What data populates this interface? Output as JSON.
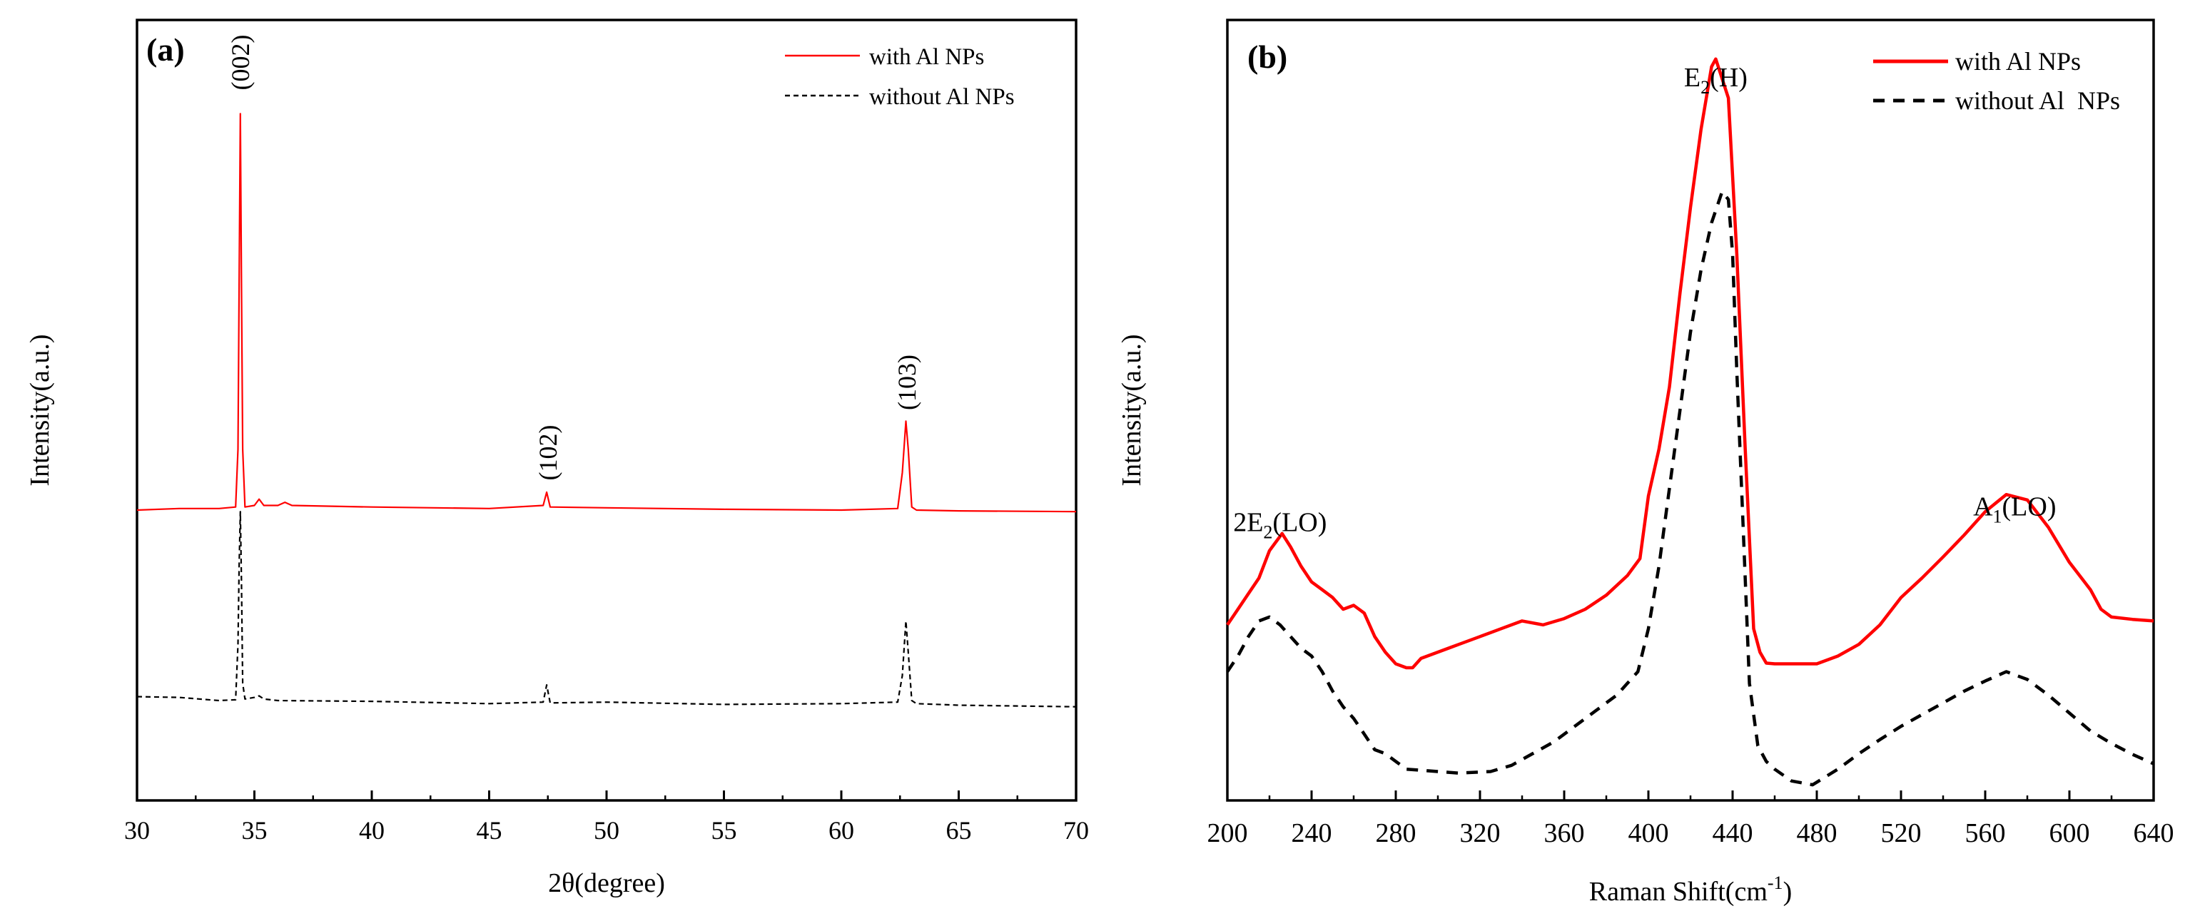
{
  "colors": {
    "with": "#ff0000",
    "without": "#000000",
    "axis": "#000000"
  },
  "chart_data": [
    {
      "type": "line",
      "panel_label": "(a)",
      "title": "",
      "xlabel": "2θ(degree)",
      "ylabel": "Intensity(a.u.)",
      "xlim": [
        30,
        70
      ],
      "ylim": [
        0,
        100
      ],
      "x_ticks": [
        30,
        35,
        40,
        45,
        50,
        55,
        60,
        65,
        70
      ],
      "x_tick_labels": [
        "30",
        "35",
        "40",
        "45",
        "50",
        "55",
        "60",
        "65",
        "70"
      ],
      "y_ticks": [],
      "grid": false,
      "legend": {
        "position": "top-right",
        "entries": [
          {
            "name": "with Al NPs",
            "style": "solid",
            "color": "#ff0000"
          },
          {
            "name": "without Al NPs",
            "style": "dashed",
            "color": "#000000"
          }
        ]
      },
      "annotations": [
        {
          "text": "(002)",
          "x": 34.4,
          "y": 91
        },
        {
          "text": "(102)",
          "x": 47.5,
          "y": 41
        },
        {
          "text": "(103)",
          "x": 62.8,
          "y": 50
        }
      ],
      "series": [
        {
          "name": "with Al NPs",
          "color": "#ff0000",
          "style": "solid",
          "width": 2.2,
          "x": [
            30,
            31.8,
            33.5,
            34.2,
            34.3,
            34.35,
            34.4,
            34.45,
            34.5,
            34.6,
            35.0,
            35.2,
            35.4,
            36.0,
            36.3,
            36.6,
            40,
            45,
            47.3,
            47.45,
            47.6,
            50,
            55,
            60,
            62.4,
            62.6,
            62.75,
            62.85,
            63.0,
            63.2,
            65,
            70
          ],
          "y": [
            37.2,
            37.4,
            37.4,
            37.6,
            45,
            66,
            88,
            66,
            45,
            37.6,
            37.8,
            38.6,
            37.8,
            37.8,
            38.2,
            37.8,
            37.6,
            37.4,
            37.8,
            39.5,
            37.6,
            37.5,
            37.3,
            37.2,
            37.4,
            42,
            48.6,
            45,
            37.6,
            37.2,
            37.1,
            37.0
          ]
        },
        {
          "name": "without Al NPs",
          "color": "#000000",
          "style": "dashed",
          "width": 2.2,
          "x": [
            30,
            31.8,
            33.5,
            34.2,
            34.3,
            34.35,
            34.4,
            34.45,
            34.5,
            34.6,
            35.0,
            35.2,
            35.4,
            36.0,
            40,
            45,
            47.3,
            47.45,
            47.6,
            50,
            55,
            60,
            62.4,
            62.6,
            62.75,
            62.85,
            63.0,
            63.2,
            65,
            70
          ],
          "y": [
            13.3,
            13.2,
            12.8,
            12.9,
            20,
            30,
            37,
            28,
            15,
            13.0,
            13.2,
            13.4,
            13.0,
            12.8,
            12.7,
            12.4,
            12.6,
            14.8,
            12.5,
            12.6,
            12.3,
            12.4,
            12.6,
            16,
            23,
            19,
            12.8,
            12.4,
            12.2,
            12.0
          ]
        }
      ]
    },
    {
      "type": "line",
      "panel_label": "(b)",
      "title": "",
      "xlabel": "Raman Shift(cm",
      "xlabel_sup": "-1",
      "xlabel_end": ")",
      "ylabel": "Intensity(a.u.)",
      "xlim": [
        200,
        640
      ],
      "ylim": [
        0,
        100
      ],
      "x_ticks": [
        200,
        240,
        280,
        320,
        360,
        400,
        440,
        480,
        520,
        560,
        600,
        640
      ],
      "x_tick_labels": [
        "200",
        "240",
        "280",
        "320",
        "360",
        "400",
        "440",
        "480",
        "520",
        "560",
        "600",
        "640"
      ],
      "y_ticks": [],
      "grid": false,
      "legend": {
        "position": "top-right",
        "entries": [
          {
            "name": "with Al NPs",
            "style": "solid",
            "color": "#ff0000"
          },
          {
            "name": "without Al  NPs",
            "style": "dashed",
            "color": "#000000"
          }
        ]
      },
      "annotations": [
        {
          "base": "2E",
          "sub": "2",
          "rest": "(LO)",
          "x": 225,
          "y": 34.5
        },
        {
          "base": "E",
          "sub": "2",
          "rest": "(H)",
          "x": 432,
          "y": 91.5
        },
        {
          "base": "A",
          "sub": "1",
          "rest": "(LO)",
          "x": 574,
          "y": 36.5
        }
      ],
      "series": [
        {
          "name": "with Al NPs",
          "color": "#ff0000",
          "style": "solid",
          "width": 4.5,
          "x": [
            200,
            205,
            210,
            215,
            220,
            226,
            230,
            235,
            240,
            245,
            250,
            255,
            260,
            265,
            270,
            275,
            280,
            285,
            288,
            292,
            300,
            310,
            320,
            330,
            340,
            350,
            360,
            370,
            380,
            390,
            396,
            400,
            405,
            410,
            415,
            420,
            425,
            430,
            432,
            438,
            442,
            446,
            450,
            453,
            456,
            460,
            470,
            480,
            490,
            500,
            510,
            520,
            530,
            540,
            550,
            560,
            570,
            580,
            590,
            600,
            610,
            615,
            620,
            630,
            640
          ],
          "y": [
            22.5,
            24.5,
            26.5,
            28.5,
            32,
            34.2,
            32.5,
            30,
            28,
            27,
            26,
            24.5,
            25,
            24,
            21,
            19,
            17.5,
            17,
            17,
            18.2,
            19,
            20,
            21,
            22,
            23,
            22.5,
            23.3,
            24.5,
            26.3,
            28.8,
            31,
            39,
            45,
            53,
            65,
            76,
            86,
            94,
            95,
            90,
            70,
            45,
            22,
            19,
            17.6,
            17.5,
            17.5,
            17.5,
            18.5,
            20,
            22.5,
            26,
            28.5,
            31.2,
            34,
            37,
            39.2,
            38.5,
            35,
            30.5,
            27,
            24.5,
            23.5,
            23.2,
            23
          ]
        },
        {
          "name": "without Al  NPs",
          "color": "#000000",
          "style": "dashed",
          "width": 4.5,
          "x": [
            200,
            205,
            210,
            215,
            220,
            225,
            230,
            235,
            240,
            245,
            250,
            255,
            260,
            265,
            270,
            275,
            280,
            285,
            295,
            310,
            325,
            335,
            345,
            355,
            365,
            375,
            385,
            390,
            395,
            400,
            405,
            410,
            415,
            420,
            425,
            430,
            435,
            438,
            440,
            442,
            445,
            448,
            452,
            456,
            460,
            468,
            478,
            490,
            500,
            510,
            520,
            530,
            540,
            550,
            560,
            570,
            580,
            590,
            600,
            610,
            620,
            630,
            640
          ],
          "y": [
            16.5,
            18.5,
            21,
            23,
            23.5,
            22.5,
            21,
            19.5,
            18.5,
            16.5,
            14,
            12,
            10.5,
            8.5,
            6.5,
            6,
            5,
            4,
            3.8,
            3.5,
            3.7,
            4.5,
            6,
            7.5,
            9.5,
            11.5,
            13.5,
            15,
            16.5,
            22,
            30,
            40,
            50,
            60,
            68,
            74,
            78,
            77,
            70,
            55,
            35,
            15,
            7,
            5,
            4,
            2.5,
            2,
            4,
            6,
            7.8,
            9.5,
            11,
            12.5,
            14,
            15.3,
            16.5,
            15.5,
            13.5,
            11.2,
            8.9,
            7.3,
            5.9,
            4.7
          ]
        }
      ]
    }
  ]
}
